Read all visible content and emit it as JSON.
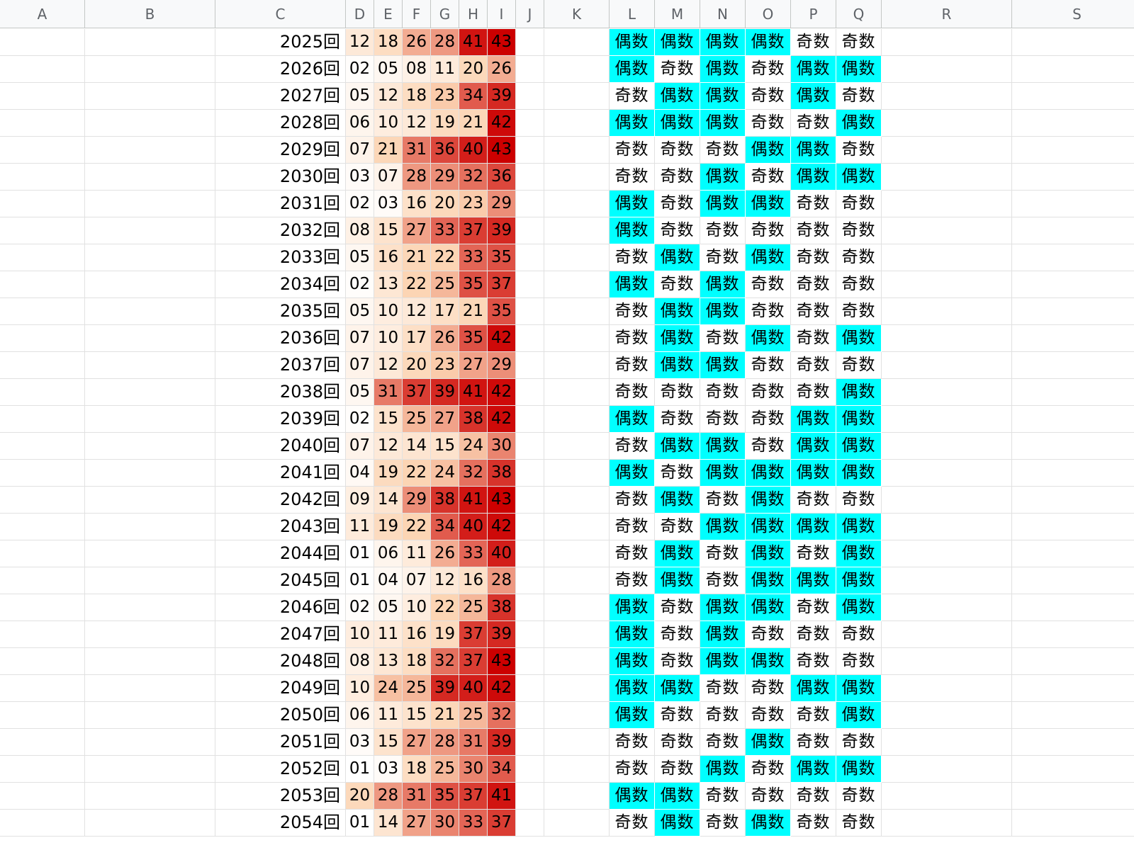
{
  "columns": [
    "A",
    "B",
    "C",
    "D",
    "E",
    "F",
    "G",
    "H",
    "I",
    "J",
    "K",
    "L",
    "M",
    "N",
    "O",
    "P",
    "Q",
    "R",
    "S"
  ],
  "colors": {
    "even_highlight": "#00ffff",
    "heat_low": "#ffffff",
    "heat_mid": "#fcd5b4",
    "heat_high": "#cc0000"
  },
  "rows": [
    {
      "round": "2025回",
      "nums": [
        "12",
        "18",
        "26",
        "28",
        "41",
        "43"
      ],
      "parity": [
        "偶数",
        "偶数",
        "偶数",
        "偶数",
        "奇数",
        "奇数"
      ]
    },
    {
      "round": "2026回",
      "nums": [
        "02",
        "05",
        "08",
        "11",
        "20",
        "26"
      ],
      "parity": [
        "偶数",
        "奇数",
        "偶数",
        "奇数",
        "偶数",
        "偶数"
      ]
    },
    {
      "round": "2027回",
      "nums": [
        "05",
        "12",
        "18",
        "23",
        "34",
        "39"
      ],
      "parity": [
        "奇数",
        "偶数",
        "偶数",
        "奇数",
        "偶数",
        "奇数"
      ]
    },
    {
      "round": "2028回",
      "nums": [
        "06",
        "10",
        "12",
        "19",
        "21",
        "42"
      ],
      "parity": [
        "偶数",
        "偶数",
        "偶数",
        "奇数",
        "奇数",
        "偶数"
      ]
    },
    {
      "round": "2029回",
      "nums": [
        "07",
        "21",
        "31",
        "36",
        "40",
        "43"
      ],
      "parity": [
        "奇数",
        "奇数",
        "奇数",
        "偶数",
        "偶数",
        "奇数"
      ]
    },
    {
      "round": "2030回",
      "nums": [
        "03",
        "07",
        "28",
        "29",
        "32",
        "36"
      ],
      "parity": [
        "奇数",
        "奇数",
        "偶数",
        "奇数",
        "偶数",
        "偶数"
      ]
    },
    {
      "round": "2031回",
      "nums": [
        "02",
        "03",
        "16",
        "20",
        "23",
        "29"
      ],
      "parity": [
        "偶数",
        "奇数",
        "偶数",
        "偶数",
        "奇数",
        "奇数"
      ]
    },
    {
      "round": "2032回",
      "nums": [
        "08",
        "15",
        "27",
        "33",
        "37",
        "39"
      ],
      "parity": [
        "偶数",
        "奇数",
        "奇数",
        "奇数",
        "奇数",
        "奇数"
      ]
    },
    {
      "round": "2033回",
      "nums": [
        "05",
        "16",
        "21",
        "22",
        "33",
        "35"
      ],
      "parity": [
        "奇数",
        "偶数",
        "奇数",
        "偶数",
        "奇数",
        "奇数"
      ]
    },
    {
      "round": "2034回",
      "nums": [
        "02",
        "13",
        "22",
        "25",
        "35",
        "37"
      ],
      "parity": [
        "偶数",
        "奇数",
        "偶数",
        "奇数",
        "奇数",
        "奇数"
      ]
    },
    {
      "round": "2035回",
      "nums": [
        "05",
        "10",
        "12",
        "17",
        "21",
        "35"
      ],
      "parity": [
        "奇数",
        "偶数",
        "偶数",
        "奇数",
        "奇数",
        "奇数"
      ]
    },
    {
      "round": "2036回",
      "nums": [
        "07",
        "10",
        "17",
        "26",
        "35",
        "42"
      ],
      "parity": [
        "奇数",
        "偶数",
        "奇数",
        "偶数",
        "奇数",
        "偶数"
      ]
    },
    {
      "round": "2037回",
      "nums": [
        "07",
        "12",
        "20",
        "23",
        "27",
        "29"
      ],
      "parity": [
        "奇数",
        "偶数",
        "偶数",
        "奇数",
        "奇数",
        "奇数"
      ]
    },
    {
      "round": "2038回",
      "nums": [
        "05",
        "31",
        "37",
        "39",
        "41",
        "42"
      ],
      "parity": [
        "奇数",
        "奇数",
        "奇数",
        "奇数",
        "奇数",
        "偶数"
      ]
    },
    {
      "round": "2039回",
      "nums": [
        "02",
        "15",
        "25",
        "27",
        "38",
        "42"
      ],
      "parity": [
        "偶数",
        "奇数",
        "奇数",
        "奇数",
        "偶数",
        "偶数"
      ]
    },
    {
      "round": "2040回",
      "nums": [
        "07",
        "12",
        "14",
        "15",
        "24",
        "30"
      ],
      "parity": [
        "奇数",
        "偶数",
        "偶数",
        "奇数",
        "偶数",
        "偶数"
      ]
    },
    {
      "round": "2041回",
      "nums": [
        "04",
        "19",
        "22",
        "24",
        "32",
        "38"
      ],
      "parity": [
        "偶数",
        "奇数",
        "偶数",
        "偶数",
        "偶数",
        "偶数"
      ]
    },
    {
      "round": "2042回",
      "nums": [
        "09",
        "14",
        "29",
        "38",
        "41",
        "43"
      ],
      "parity": [
        "奇数",
        "偶数",
        "奇数",
        "偶数",
        "奇数",
        "奇数"
      ]
    },
    {
      "round": "2043回",
      "nums": [
        "11",
        "19",
        "22",
        "34",
        "40",
        "42"
      ],
      "parity": [
        "奇数",
        "奇数",
        "偶数",
        "偶数",
        "偶数",
        "偶数"
      ]
    },
    {
      "round": "2044回",
      "nums": [
        "01",
        "06",
        "11",
        "26",
        "33",
        "40"
      ],
      "parity": [
        "奇数",
        "偶数",
        "奇数",
        "偶数",
        "奇数",
        "偶数"
      ]
    },
    {
      "round": "2045回",
      "nums": [
        "01",
        "04",
        "07",
        "12",
        "16",
        "28"
      ],
      "parity": [
        "奇数",
        "偶数",
        "奇数",
        "偶数",
        "偶数",
        "偶数"
      ]
    },
    {
      "round": "2046回",
      "nums": [
        "02",
        "05",
        "10",
        "22",
        "25",
        "38"
      ],
      "parity": [
        "偶数",
        "奇数",
        "偶数",
        "偶数",
        "奇数",
        "偶数"
      ]
    },
    {
      "round": "2047回",
      "nums": [
        "10",
        "11",
        "16",
        "19",
        "37",
        "39"
      ],
      "parity": [
        "偶数",
        "奇数",
        "偶数",
        "奇数",
        "奇数",
        "奇数"
      ]
    },
    {
      "round": "2048回",
      "nums": [
        "08",
        "13",
        "18",
        "32",
        "37",
        "43"
      ],
      "parity": [
        "偶数",
        "奇数",
        "偶数",
        "偶数",
        "奇数",
        "奇数"
      ]
    },
    {
      "round": "2049回",
      "nums": [
        "10",
        "24",
        "25",
        "39",
        "40",
        "42"
      ],
      "parity": [
        "偶数",
        "偶数",
        "奇数",
        "奇数",
        "偶数",
        "偶数"
      ]
    },
    {
      "round": "2050回",
      "nums": [
        "06",
        "11",
        "15",
        "21",
        "25",
        "32"
      ],
      "parity": [
        "偶数",
        "奇数",
        "奇数",
        "奇数",
        "奇数",
        "偶数"
      ]
    },
    {
      "round": "2051回",
      "nums": [
        "03",
        "15",
        "27",
        "28",
        "31",
        "39"
      ],
      "parity": [
        "奇数",
        "奇数",
        "奇数",
        "偶数",
        "奇数",
        "奇数"
      ]
    },
    {
      "round": "2052回",
      "nums": [
        "01",
        "03",
        "18",
        "25",
        "30",
        "34"
      ],
      "parity": [
        "奇数",
        "奇数",
        "偶数",
        "奇数",
        "偶数",
        "偶数"
      ]
    },
    {
      "round": "2053回",
      "nums": [
        "20",
        "28",
        "31",
        "35",
        "37",
        "41"
      ],
      "parity": [
        "偶数",
        "偶数",
        "奇数",
        "奇数",
        "奇数",
        "奇数"
      ]
    },
    {
      "round": "2054回",
      "nums": [
        "01",
        "14",
        "27",
        "30",
        "33",
        "37"
      ],
      "parity": [
        "奇数",
        "偶数",
        "奇数",
        "偶数",
        "奇数",
        "奇数"
      ]
    }
  ]
}
